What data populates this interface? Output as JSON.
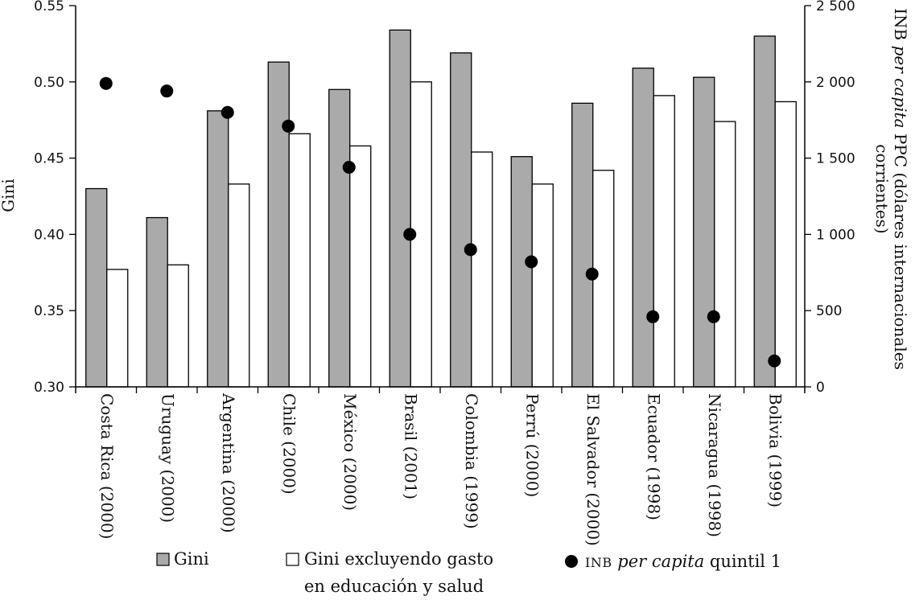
{
  "chart_data": {
    "type": "bar",
    "categories": [
      "Costa Rica (2000)",
      "Uruguay (2000)",
      "Argentina (2000)",
      "Chile (2000)",
      "México (2000)",
      "Brasil (2001)",
      "Colombia (1999)",
      "Perrú (2000)",
      "El Salvador (2000)",
      "Ecuador (1998)",
      "Nicaragua (1998)",
      "Bolivia (1999)"
    ],
    "series": [
      {
        "name": "Gini",
        "axis": "left",
        "style": "bar",
        "color": "#aaaaaa",
        "values": [
          0.43,
          0.411,
          0.481,
          0.513,
          0.495,
          0.534,
          0.519,
          0.451,
          0.486,
          0.509,
          0.503,
          0.53
        ]
      },
      {
        "name": "Gini excluyendo gasto en educación y salud",
        "axis": "left",
        "style": "bar",
        "color": "#ffffff",
        "values": [
          0.377,
          0.38,
          0.433,
          0.466,
          0.458,
          0.5,
          0.454,
          0.433,
          0.442,
          0.491,
          0.474,
          0.487
        ]
      },
      {
        "name": "INB per capita quintil 1",
        "axis": "right",
        "style": "point",
        "color": "#000000",
        "values": [
          1990,
          1940,
          1800,
          1710,
          1440,
          1000,
          900,
          820,
          740,
          460,
          460,
          170
        ]
      }
    ],
    "ylabel": "Gini",
    "ylim": [
      0.3,
      0.55
    ],
    "yticks": [
      "0.30",
      "0.35",
      "0.40",
      "0.45",
      "0.50",
      "0.55"
    ],
    "y2label": "INB per capita PPC (dólares internacionales corrientes)",
    "y2label_parts": [
      "INB ",
      "per capita",
      " PPC (dólares internacionales",
      "corrientes)"
    ],
    "y2lim": [
      0,
      2500
    ],
    "y2ticks": [
      "0",
      "500",
      "1 000",
      "1 500",
      "2 000",
      "2 500"
    ],
    "legend": {
      "gini": "Gini",
      "excl_line1": "Gini excluyendo gasto",
      "excl_line2": "en educación y salud",
      "inb_prefix": "INB",
      "inb_italic": "per capita",
      "inb_suffix": " quintil 1",
      "placement": "bottom"
    }
  }
}
